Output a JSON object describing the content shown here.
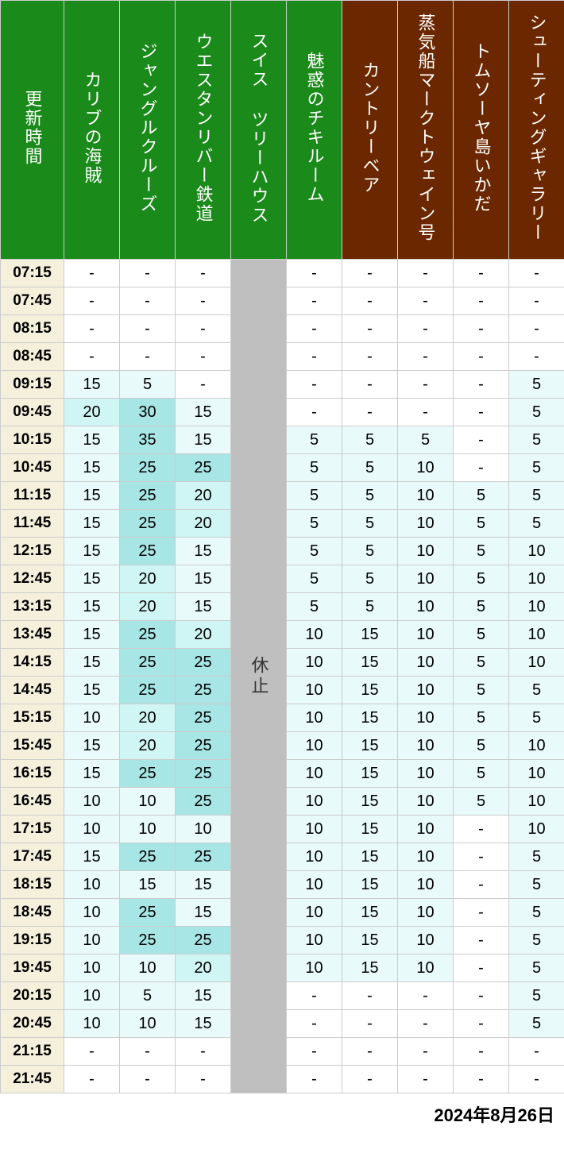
{
  "date": "2024年8月26日",
  "colors": {
    "green_header": "#1a8b1a",
    "brown_header": "#6b2800",
    "time_bg": "#f5f0dc",
    "closed_bg": "#bfbfbf",
    "tier_white": "#ffffff",
    "tier_lightest": "#e8fafa",
    "tier_light": "#d0f5f5",
    "tier_medium": "#a8e5e5",
    "border": "#cccccc"
  },
  "tiers": {
    "ranges": [
      {
        "min": 0,
        "max": 0,
        "color": "#ffffff"
      },
      {
        "min": 5,
        "max": 15,
        "color": "#e8fafa"
      },
      {
        "min": 20,
        "max": 20,
        "color": "#d0f5f5"
      },
      {
        "min": 25,
        "max": 100,
        "color": "#a8e5e5"
      }
    ]
  },
  "closed_label": "休止",
  "headers": [
    {
      "label": "更新時間",
      "color": "green"
    },
    {
      "label": "カリブの海賊",
      "color": "green"
    },
    {
      "label": "ジャングルクルーズ",
      "color": "green"
    },
    {
      "label": "ウエスタンリバー鉄道",
      "color": "green"
    },
    {
      "label": "スイス ツリーハウス",
      "color": "green"
    },
    {
      "label": "魅惑のチキルーム",
      "color": "green"
    },
    {
      "label": "カントリーベア",
      "color": "brown"
    },
    {
      "label": "蒸気船マークトウェイン号",
      "color": "brown"
    },
    {
      "label": "トムソーヤ島いかだ",
      "color": "brown"
    },
    {
      "label": "シューティングギャラリー",
      "color": "brown"
    }
  ],
  "times": [
    "07:15",
    "07:45",
    "08:15",
    "08:45",
    "09:15",
    "09:45",
    "10:15",
    "10:45",
    "11:15",
    "11:45",
    "12:15",
    "12:45",
    "13:15",
    "13:45",
    "14:15",
    "14:45",
    "15:15",
    "15:45",
    "16:15",
    "16:45",
    "17:15",
    "17:45",
    "18:15",
    "18:45",
    "19:15",
    "19:45",
    "20:15",
    "20:45",
    "21:15",
    "21:45"
  ],
  "closed_columns": [
    4
  ],
  "data": [
    [
      "-",
      "-",
      "-",
      null,
      "-",
      "-",
      "-",
      "-",
      "-"
    ],
    [
      "-",
      "-",
      "-",
      null,
      "-",
      "-",
      "-",
      "-",
      "-"
    ],
    [
      "-",
      "-",
      "-",
      null,
      "-",
      "-",
      "-",
      "-",
      "-"
    ],
    [
      "-",
      "-",
      "-",
      null,
      "-",
      "-",
      "-",
      "-",
      "-"
    ],
    [
      "15",
      "5",
      "-",
      null,
      "-",
      "-",
      "-",
      "-",
      "5"
    ],
    [
      "20",
      "30",
      "15",
      null,
      "-",
      "-",
      "-",
      "-",
      "5"
    ],
    [
      "15",
      "35",
      "15",
      null,
      "5",
      "5",
      "5",
      "-",
      "5"
    ],
    [
      "15",
      "25",
      "25",
      null,
      "5",
      "5",
      "10",
      "-",
      "5"
    ],
    [
      "15",
      "25",
      "20",
      null,
      "5",
      "5",
      "10",
      "5",
      "5"
    ],
    [
      "15",
      "25",
      "20",
      null,
      "5",
      "5",
      "10",
      "5",
      "5"
    ],
    [
      "15",
      "25",
      "15",
      null,
      "5",
      "5",
      "10",
      "5",
      "10"
    ],
    [
      "15",
      "20",
      "15",
      null,
      "5",
      "5",
      "10",
      "5",
      "10"
    ],
    [
      "15",
      "20",
      "15",
      null,
      "5",
      "5",
      "10",
      "5",
      "10"
    ],
    [
      "15",
      "25",
      "20",
      null,
      "10",
      "15",
      "10",
      "5",
      "10"
    ],
    [
      "15",
      "25",
      "25",
      null,
      "10",
      "15",
      "10",
      "5",
      "10"
    ],
    [
      "15",
      "25",
      "25",
      null,
      "10",
      "15",
      "10",
      "5",
      "5"
    ],
    [
      "10",
      "20",
      "25",
      null,
      "10",
      "15",
      "10",
      "5",
      "5"
    ],
    [
      "15",
      "20",
      "25",
      null,
      "10",
      "15",
      "10",
      "5",
      "10"
    ],
    [
      "15",
      "25",
      "25",
      null,
      "10",
      "15",
      "10",
      "5",
      "10"
    ],
    [
      "10",
      "10",
      "25",
      null,
      "10",
      "15",
      "10",
      "5",
      "10"
    ],
    [
      "10",
      "10",
      "10",
      null,
      "10",
      "15",
      "10",
      "-",
      "10"
    ],
    [
      "15",
      "25",
      "25",
      null,
      "10",
      "15",
      "10",
      "-",
      "5"
    ],
    [
      "10",
      "15",
      "15",
      null,
      "10",
      "15",
      "10",
      "-",
      "5"
    ],
    [
      "10",
      "25",
      "15",
      null,
      "10",
      "15",
      "10",
      "-",
      "5"
    ],
    [
      "10",
      "25",
      "25",
      null,
      "10",
      "15",
      "10",
      "-",
      "5"
    ],
    [
      "10",
      "10",
      "20",
      null,
      "10",
      "15",
      "10",
      "-",
      "5"
    ],
    [
      "10",
      "5",
      "15",
      null,
      "-",
      "-",
      "-",
      "-",
      "5"
    ],
    [
      "10",
      "10",
      "15",
      null,
      "-",
      "-",
      "-",
      "-",
      "5"
    ],
    [
      "-",
      "-",
      "-",
      null,
      "-",
      "-",
      "-",
      "-",
      "-"
    ],
    [
      "-",
      "-",
      "-",
      null,
      "-",
      "-",
      "-",
      "-",
      "-"
    ]
  ]
}
